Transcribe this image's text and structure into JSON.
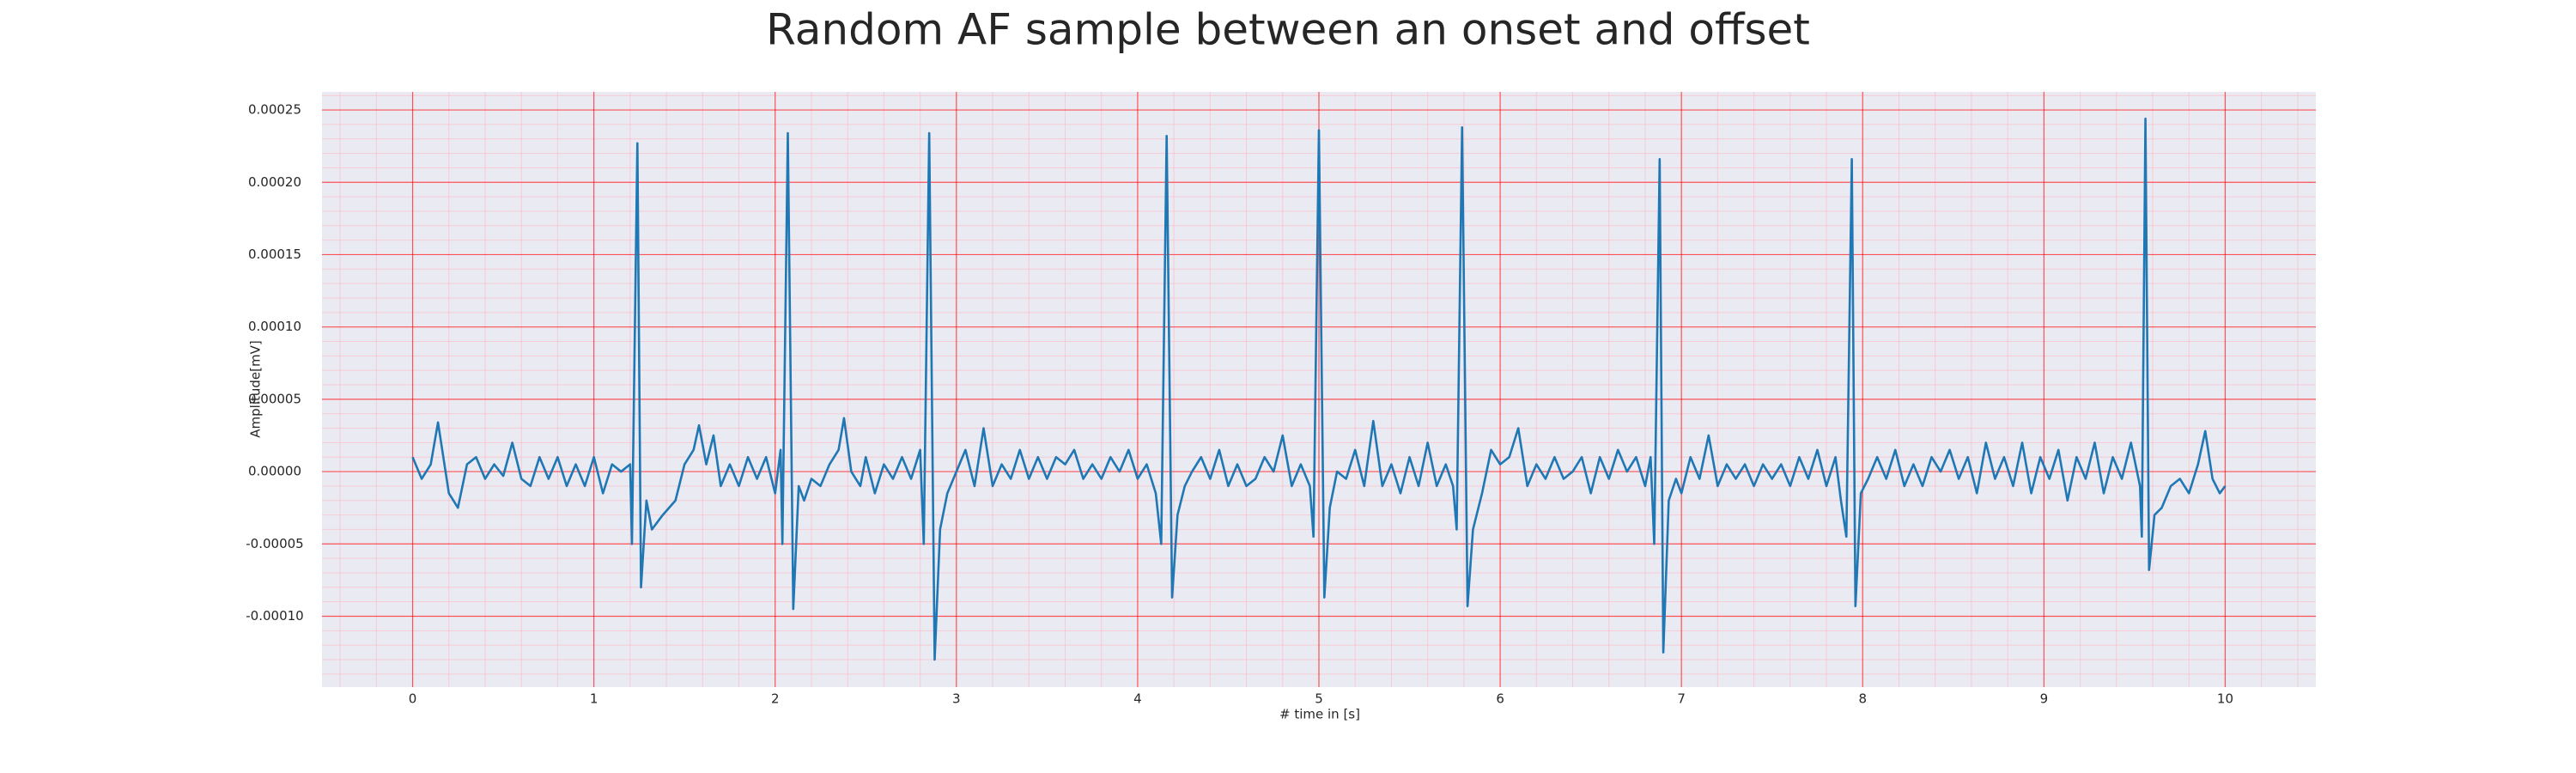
{
  "chart_data": {
    "type": "line",
    "title": "Random AF sample between an onset and offset",
    "xlabel": "# time in [s]",
    "ylabel": "Amplitude[mV]",
    "color": "#1f77b4",
    "grid": true,
    "minor_grid": true,
    "grid_color": "#ff0000",
    "minor_grid_color": "#ffb6c1",
    "xlim": [
      -0.5,
      10.5
    ],
    "ylim": [
      -0.000149,
      0.0002625
    ],
    "xticks": [
      0,
      1,
      2,
      3,
      4,
      5,
      6,
      7,
      8,
      9,
      10
    ],
    "yticks": [
      {
        "value": -0.0001,
        "label": "-0.00010"
      },
      {
        "value": -5e-05,
        "label": "-0.00005"
      },
      {
        "value": 0,
        "label": "0.00000"
      },
      {
        "value": 5e-05,
        "label": "0.00005"
      },
      {
        "value": 0.0001,
        "label": "0.00010"
      },
      {
        "value": 0.00015,
        "label": "0.00015"
      },
      {
        "value": 0.0002,
        "label": "0.00020"
      },
      {
        "value": 0.00025,
        "label": "0.00025"
      }
    ],
    "x": [
      0.0,
      0.05,
      0.1,
      0.14,
      0.2,
      0.25,
      0.3,
      0.35,
      0.4,
      0.45,
      0.5,
      0.55,
      0.6,
      0.65,
      0.7,
      0.75,
      0.8,
      0.85,
      0.9,
      0.95,
      1.0,
      1.05,
      1.1,
      1.15,
      1.2,
      1.21,
      1.24,
      1.26,
      1.29,
      1.32,
      1.38,
      1.45,
      1.5,
      1.55,
      1.58,
      1.62,
      1.66,
      1.7,
      1.75,
      1.8,
      1.85,
      1.9,
      1.95,
      2.0,
      2.03,
      2.04,
      2.07,
      2.1,
      2.13,
      2.16,
      2.2,
      2.25,
      2.3,
      2.35,
      2.38,
      2.42,
      2.47,
      2.5,
      2.55,
      2.6,
      2.65,
      2.7,
      2.75,
      2.8,
      2.82,
      2.85,
      2.88,
      2.91,
      2.95,
      3.0,
      3.05,
      3.1,
      3.15,
      3.2,
      3.25,
      3.3,
      3.35,
      3.4,
      3.45,
      3.5,
      3.55,
      3.6,
      3.65,
      3.7,
      3.75,
      3.8,
      3.85,
      3.9,
      3.95,
      4.0,
      4.05,
      4.1,
      4.13,
      4.16,
      4.19,
      4.22,
      4.26,
      4.3,
      4.35,
      4.4,
      4.45,
      4.5,
      4.55,
      4.6,
      4.65,
      4.7,
      4.75,
      4.8,
      4.85,
      4.9,
      4.95,
      4.97,
      5.0,
      5.03,
      5.06,
      5.1,
      5.15,
      5.2,
      5.25,
      5.3,
      5.35,
      5.4,
      5.45,
      5.5,
      5.55,
      5.6,
      5.65,
      5.7,
      5.74,
      5.76,
      5.79,
      5.82,
      5.85,
      5.9,
      5.95,
      6.0,
      6.05,
      6.1,
      6.15,
      6.2,
      6.25,
      6.3,
      6.35,
      6.4,
      6.45,
      6.5,
      6.55,
      6.6,
      6.65,
      6.7,
      6.75,
      6.8,
      6.83,
      6.85,
      6.88,
      6.9,
      6.93,
      6.97,
      7.0,
      7.05,
      7.1,
      7.15,
      7.2,
      7.25,
      7.3,
      7.35,
      7.4,
      7.45,
      7.5,
      7.55,
      7.6,
      7.65,
      7.7,
      7.75,
      7.8,
      7.85,
      7.88,
      7.91,
      7.94,
      7.96,
      7.99,
      8.03,
      8.08,
      8.13,
      8.18,
      8.23,
      8.28,
      8.33,
      8.38,
      8.43,
      8.48,
      8.53,
      8.58,
      8.63,
      8.68,
      8.73,
      8.78,
      8.83,
      8.88,
      8.93,
      8.98,
      9.03,
      9.08,
      9.13,
      9.18,
      9.23,
      9.28,
      9.33,
      9.38,
      9.43,
      9.48,
      9.53,
      9.54,
      9.56,
      9.58,
      9.61,
      9.65,
      9.7,
      9.75,
      9.8,
      9.85,
      9.89,
      9.93,
      9.97,
      10.0
    ],
    "values": [
      1e-05,
      -5e-06,
      5e-06,
      3.4e-05,
      -1.5e-05,
      -2.5e-05,
      5e-06,
      1e-05,
      -5e-06,
      5e-06,
      -3e-06,
      2e-05,
      -5e-06,
      -1e-05,
      1e-05,
      -5e-06,
      1e-05,
      -1e-05,
      5e-06,
      -1e-05,
      1e-05,
      -1.5e-05,
      5e-06,
      0.0,
      5e-06,
      -5e-05,
      0.000227,
      -8e-05,
      -2e-05,
      -4e-05,
      -3e-05,
      -2e-05,
      5e-06,
      1.5e-05,
      3.2e-05,
      5e-06,
      2.5e-05,
      -1e-05,
      5e-06,
      -1e-05,
      1e-05,
      -5e-06,
      1e-05,
      -1.5e-05,
      1.5e-05,
      -5e-05,
      0.000234,
      -9.5e-05,
      -1e-05,
      -2e-05,
      -5e-06,
      -1e-05,
      5e-06,
      1.5e-05,
      3.7e-05,
      0.0,
      -1e-05,
      1e-05,
      -1.5e-05,
      5e-06,
      -5e-06,
      1e-05,
      -5e-06,
      1.5e-05,
      -5e-05,
      0.000234,
      -0.00013,
      -4e-05,
      -1.5e-05,
      0.0,
      1.5e-05,
      -1e-05,
      3e-05,
      -1e-05,
      5e-06,
      -5e-06,
      1.5e-05,
      -5e-06,
      1e-05,
      -5e-06,
      1e-05,
      5e-06,
      1.5e-05,
      -5e-06,
      5e-06,
      -5e-06,
      1e-05,
      0.0,
      1.5e-05,
      -5e-06,
      5e-06,
      -1.5e-05,
      -5e-05,
      0.000232,
      -8.7e-05,
      -3e-05,
      -1e-05,
      0.0,
      1e-05,
      -5e-06,
      1.5e-05,
      -1e-05,
      5e-06,
      -1e-05,
      -5e-06,
      1e-05,
      0.0,
      2.5e-05,
      -1e-05,
      5e-06,
      -1e-05,
      -4.5e-05,
      0.000236,
      -8.7e-05,
      -2.5e-05,
      0.0,
      -5e-06,
      1.5e-05,
      -1e-05,
      3.5e-05,
      -1e-05,
      5e-06,
      -1.5e-05,
      1e-05,
      -1e-05,
      2e-05,
      -1e-05,
      5e-06,
      -1e-05,
      -4e-05,
      0.000238,
      -9.3e-05,
      -4e-05,
      -1.5e-05,
      1.5e-05,
      5e-06,
      1e-05,
      3e-05,
      -1e-05,
      5e-06,
      -5e-06,
      1e-05,
      -5e-06,
      0.0,
      1e-05,
      -1.5e-05,
      1e-05,
      -5e-06,
      1.5e-05,
      0.0,
      1e-05,
      -1e-05,
      1e-05,
      -5e-05,
      0.000216,
      -0.000125,
      -2e-05,
      -5e-06,
      -1.5e-05,
      1e-05,
      -5e-06,
      2.5e-05,
      -1e-05,
      5e-06,
      -5e-06,
      5e-06,
      -1e-05,
      5e-06,
      -5e-06,
      5e-06,
      -1e-05,
      1e-05,
      -5e-06,
      1.5e-05,
      -1e-05,
      1e-05,
      -2e-05,
      -4.5e-05,
      0.000216,
      -9.3e-05,
      -1.5e-05,
      -5e-06,
      1e-05,
      -5e-06,
      1.5e-05,
      -1e-05,
      5e-06,
      -1e-05,
      1e-05,
      0.0,
      1.5e-05,
      -5e-06,
      1e-05,
      -1.5e-05,
      2e-05,
      -5e-06,
      1e-05,
      -1e-05,
      2e-05,
      -1.5e-05,
      1e-05,
      -5e-06,
      1.5e-05,
      -2e-05,
      1e-05,
      -5e-06,
      2e-05,
      -1.5e-05,
      1e-05,
      -5e-06,
      2e-05,
      -1e-05,
      -4.5e-05,
      0.000244,
      -6.8e-05,
      -3e-05,
      -2.5e-05,
      -1e-05,
      -5e-06,
      -1.5e-05,
      5e-06,
      2.8e-05,
      -5e-06,
      -1.5e-05,
      -1e-05
    ]
  }
}
